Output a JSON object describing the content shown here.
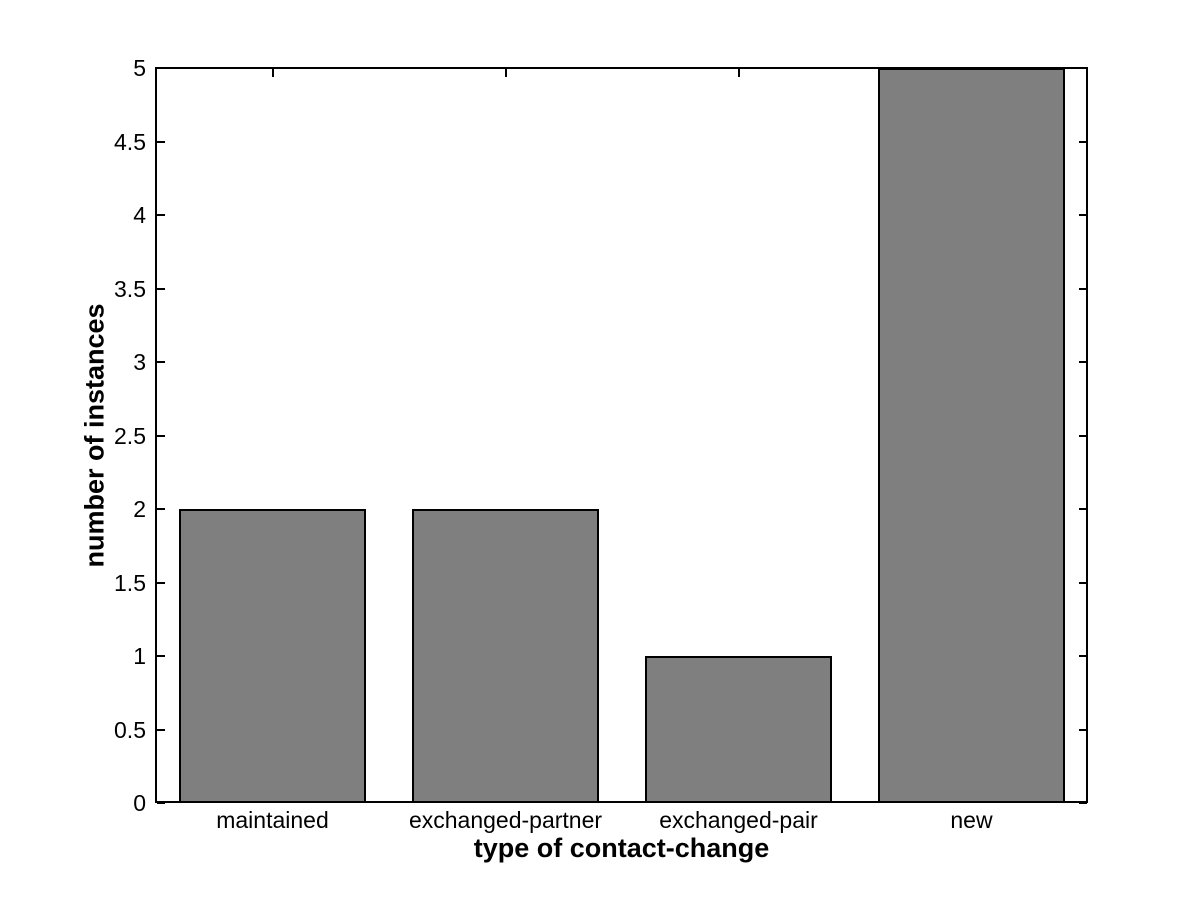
{
  "chart_data": {
    "type": "bar",
    "categories": [
      "maintained",
      "exchanged-partner",
      "exchanged-pair",
      "new"
    ],
    "values": [
      2,
      2,
      1,
      5
    ],
    "title": "",
    "xlabel": "type of contact-change",
    "ylabel": "number of instances",
    "ylim": [
      0,
      5
    ],
    "yticks": [
      0,
      0.5,
      1,
      1.5,
      2,
      2.5,
      3,
      3.5,
      4,
      4.5,
      5
    ],
    "ytick_labels": [
      "0",
      "0.5",
      "1",
      "1.5",
      "2",
      "2.5",
      "3",
      "3.5",
      "4",
      "4.5",
      "5"
    ],
    "grid": false,
    "legend": null,
    "box": true,
    "tick_direction": "in",
    "bar_width_fraction": 0.8,
    "colors": {
      "bar_fill": "#7f7f7f",
      "bar_edge": "#000000",
      "axis": "#000000",
      "text": "#000000",
      "background": "#ffffff"
    }
  }
}
